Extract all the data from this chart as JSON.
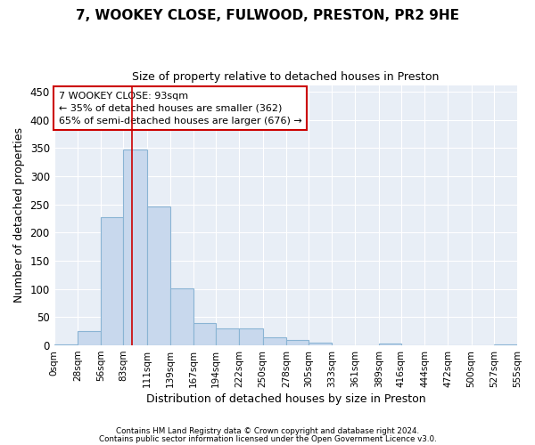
{
  "title1": "7, WOOKEY CLOSE, FULWOOD, PRESTON, PR2 9HE",
  "title2": "Size of property relative to detached houses in Preston",
  "xlabel": "Distribution of detached houses by size in Preston",
  "ylabel": "Number of detached properties",
  "bar_color": "#c8d8ed",
  "bar_edge_color": "#8ab4d4",
  "background_color": "#e8eef6",
  "grid_color": "#ffffff",
  "fig_background_color": "#ffffff",
  "bin_edges": [
    0,
    28,
    56,
    83,
    111,
    139,
    167,
    194,
    222,
    250,
    278,
    305,
    333,
    361,
    389,
    416,
    444,
    472,
    500,
    527,
    555
  ],
  "bin_labels": [
    "0sqm",
    "28sqm",
    "56sqm",
    "83sqm",
    "111sqm",
    "139sqm",
    "167sqm",
    "194sqm",
    "222sqm",
    "250sqm",
    "278sqm",
    "305sqm",
    "333sqm",
    "361sqm",
    "389sqm",
    "416sqm",
    "444sqm",
    "472sqm",
    "500sqm",
    "527sqm",
    "555sqm"
  ],
  "bar_heights": [
    2,
    25,
    228,
    348,
    246,
    101,
    40,
    30,
    30,
    15,
    10,
    5,
    0,
    0,
    4,
    0,
    0,
    0,
    0,
    2
  ],
  "property_size": 93,
  "red_line_color": "#cc0000",
  "annotation_line1": "7 WOOKEY CLOSE: 93sqm",
  "annotation_line2": "← 35% of detached houses are smaller (362)",
  "annotation_line3": "65% of semi-detached houses are larger (676) →",
  "annotation_box_color": "#ffffff",
  "annotation_box_edge_color": "#cc0000",
  "ylim": [
    0,
    462
  ],
  "yticks": [
    0,
    50,
    100,
    150,
    200,
    250,
    300,
    350,
    400,
    450
  ],
  "footer1": "Contains HM Land Registry data © Crown copyright and database right 2024.",
  "footer2": "Contains public sector information licensed under the Open Government Licence v3.0.",
  "title1_fontsize": 11,
  "title2_fontsize": 9,
  "xlabel_fontsize": 9,
  "ylabel_fontsize": 9,
  "xtick_fontsize": 7.5,
  "ytick_fontsize": 8.5
}
